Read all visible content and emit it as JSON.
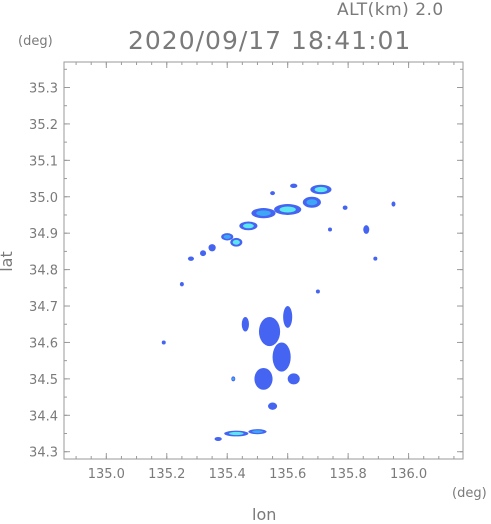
{
  "header": {
    "altitude_label": "ALT(km) 2.0",
    "timestamp": "2020/09/17 18:41:01"
  },
  "chart_data": {
    "type": "heatmap",
    "title": "2020/09/17 18:41:01",
    "subtitle": "ALT(km) 2.0",
    "xlabel": "lon",
    "ylabel": "lat",
    "x_unit": "(deg)",
    "y_unit": "(deg)",
    "xlim": [
      134.86,
      136.18
    ],
    "ylim": [
      34.28,
      35.37
    ],
    "x_ticks": [
      "135.0",
      "135.2",
      "135.4",
      "135.6",
      "135.8",
      "136.0"
    ],
    "x_tick_values": [
      135.0,
      135.2,
      135.4,
      135.6,
      135.8,
      136.0
    ],
    "y_ticks": [
      "34.3",
      "34.4",
      "34.5",
      "34.6",
      "34.7",
      "34.8",
      "34.9",
      "35.0",
      "35.1",
      "35.2",
      "35.3"
    ],
    "y_tick_values": [
      34.3,
      34.4,
      34.5,
      34.6,
      34.7,
      34.8,
      34.9,
      35.0,
      35.1,
      35.2,
      35.3
    ],
    "grid": false,
    "colors": {
      "weak": "#3a5cf0",
      "moderate": "#3fa6f5",
      "strong": "#5de6f0",
      "axis": "#9a9a9a"
    },
    "echoes": [
      {
        "lon": 135.71,
        "lat": 35.02,
        "rx": 0.035,
        "ry": 0.013,
        "level": "strong"
      },
      {
        "lon": 135.68,
        "lat": 34.985,
        "rx": 0.03,
        "ry": 0.015,
        "level": "moderate"
      },
      {
        "lon": 135.6,
        "lat": 34.965,
        "rx": 0.045,
        "ry": 0.015,
        "level": "strong"
      },
      {
        "lon": 135.52,
        "lat": 34.955,
        "rx": 0.04,
        "ry": 0.014,
        "level": "moderate"
      },
      {
        "lon": 135.47,
        "lat": 34.92,
        "rx": 0.03,
        "ry": 0.012,
        "level": "strong"
      },
      {
        "lon": 135.4,
        "lat": 34.89,
        "rx": 0.02,
        "ry": 0.01,
        "level": "moderate"
      },
      {
        "lon": 135.43,
        "lat": 34.875,
        "rx": 0.02,
        "ry": 0.012,
        "level": "strong"
      },
      {
        "lon": 135.35,
        "lat": 34.86,
        "rx": 0.012,
        "ry": 0.01,
        "level": "weak"
      },
      {
        "lon": 135.32,
        "lat": 34.845,
        "rx": 0.01,
        "ry": 0.008,
        "level": "weak"
      },
      {
        "lon": 135.28,
        "lat": 34.83,
        "rx": 0.01,
        "ry": 0.006,
        "level": "weak"
      },
      {
        "lon": 135.62,
        "lat": 35.03,
        "rx": 0.012,
        "ry": 0.006,
        "level": "weak"
      },
      {
        "lon": 135.55,
        "lat": 35.01,
        "rx": 0.008,
        "ry": 0.005,
        "level": "weak"
      },
      {
        "lon": 135.79,
        "lat": 34.97,
        "rx": 0.008,
        "ry": 0.006,
        "level": "weak"
      },
      {
        "lon": 135.86,
        "lat": 34.91,
        "rx": 0.01,
        "ry": 0.012,
        "level": "weak"
      },
      {
        "lon": 135.95,
        "lat": 34.98,
        "rx": 0.006,
        "ry": 0.007,
        "level": "weak"
      },
      {
        "lon": 135.74,
        "lat": 34.91,
        "rx": 0.005,
        "ry": 0.004,
        "level": "weak"
      },
      {
        "lon": 135.89,
        "lat": 34.83,
        "rx": 0.004,
        "ry": 0.004,
        "level": "weak"
      },
      {
        "lon": 135.25,
        "lat": 34.76,
        "rx": 0.006,
        "ry": 0.006,
        "level": "weak"
      },
      {
        "lon": 135.6,
        "lat": 34.67,
        "rx": 0.015,
        "ry": 0.03,
        "level": "weak"
      },
      {
        "lon": 135.54,
        "lat": 34.63,
        "rx": 0.035,
        "ry": 0.04,
        "level": "weak"
      },
      {
        "lon": 135.58,
        "lat": 34.56,
        "rx": 0.03,
        "ry": 0.04,
        "level": "weak"
      },
      {
        "lon": 135.46,
        "lat": 34.65,
        "rx": 0.012,
        "ry": 0.02,
        "level": "weak"
      },
      {
        "lon": 135.52,
        "lat": 34.5,
        "rx": 0.03,
        "ry": 0.03,
        "level": "weak"
      },
      {
        "lon": 135.62,
        "lat": 34.5,
        "rx": 0.02,
        "ry": 0.015,
        "level": "weak"
      },
      {
        "lon": 135.55,
        "lat": 34.425,
        "rx": 0.015,
        "ry": 0.01,
        "level": "weak"
      },
      {
        "lon": 135.42,
        "lat": 34.5,
        "rx": 0.006,
        "ry": 0.007,
        "level": "moderate"
      },
      {
        "lon": 135.19,
        "lat": 34.6,
        "rx": 0.004,
        "ry": 0.004,
        "level": "weak"
      },
      {
        "lon": 135.7,
        "lat": 34.74,
        "rx": 0.006,
        "ry": 0.004,
        "level": "weak"
      },
      {
        "lon": 135.37,
        "lat": 34.335,
        "rx": 0.012,
        "ry": 0.005,
        "level": "weak"
      },
      {
        "lon": 135.43,
        "lat": 34.35,
        "rx": 0.04,
        "ry": 0.008,
        "level": "strong"
      },
      {
        "lon": 135.5,
        "lat": 34.355,
        "rx": 0.03,
        "ry": 0.007,
        "level": "moderate"
      }
    ]
  }
}
